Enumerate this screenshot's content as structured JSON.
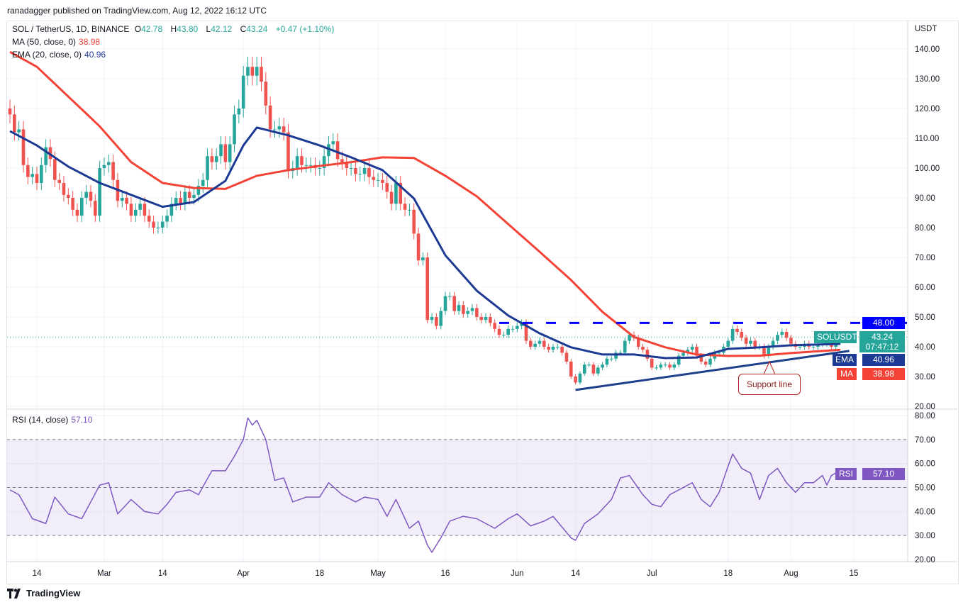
{
  "publisher": "ranadagger published on TradingView.com, Aug 12, 2022 16:12 UTC",
  "legend": {
    "symbol": "SOL / TetherUS, 1D, BINANCE",
    "o_label": "O",
    "o": "42.78",
    "h_label": "H",
    "h": "43.80",
    "l_label": "L",
    "l": "42.12",
    "c_label": "C",
    "c": "43.24",
    "change": "+0.47 (+1.10%)",
    "ma_label": "MA (50, close, 0)",
    "ma_value": "38.98",
    "ema_label": "EMA (20, close, 0)",
    "ema_value": "40.96",
    "rsi_label": "RSI (14, close)",
    "rsi_value": "57.10"
  },
  "price_axis": {
    "unit": "USDT",
    "ticks": [
      "140.00",
      "130.00",
      "120.00",
      "110.00",
      "100.00",
      "90.00",
      "80.00",
      "70.00",
      "60.00",
      "50.00",
      "40.00",
      "30.00",
      "20.00"
    ]
  },
  "rsi_axis": {
    "ticks": [
      "80.00",
      "70.00",
      "60.00",
      "50.00",
      "40.00",
      "30.00",
      "20.00"
    ]
  },
  "time_axis": {
    "ticks": [
      {
        "label": "14",
        "date": "2022-02-14"
      },
      {
        "label": "Mar",
        "date": "2022-03-01"
      },
      {
        "label": "14",
        "date": "2022-03-14"
      },
      {
        "label": "Apr",
        "date": "2022-04-01"
      },
      {
        "label": "18",
        "date": "2022-04-18"
      },
      {
        "label": "May",
        "date": "2022-05-01"
      },
      {
        "label": "16",
        "date": "2022-05-16"
      },
      {
        "label": "Jun",
        "date": "2022-06-01"
      },
      {
        "label": "14",
        "date": "2022-06-14"
      },
      {
        "label": "Jul",
        "date": "2022-07-01"
      },
      {
        "label": "18",
        "date": "2022-07-18"
      },
      {
        "label": "Aug",
        "date": "2022-08-01"
      },
      {
        "label": "15",
        "date": "2022-08-15"
      }
    ]
  },
  "tags": {
    "resistance": "48.00",
    "symbol": "SOLUSDT",
    "last": "43.24",
    "countdown": "07:47:12",
    "ema": "EMA",
    "ema_value": "40.96",
    "ma": "MA",
    "ma_value": "38.98",
    "rsi": "RSI",
    "rsi_value": "57.10"
  },
  "annotation": {
    "support_label": "Support line"
  },
  "colors": {
    "up": "#26a69a",
    "down": "#ef5350",
    "ma": "#f44336",
    "ema": "#1c3a94",
    "support": "#1e3f8a",
    "resistance": "#0000ff",
    "rsi": "#7e57c2",
    "annotation": "#b22222"
  },
  "footer": {
    "brand": "TradingView"
  },
  "chart_data": {
    "type": "candlestick",
    "ylim": [
      20,
      140
    ],
    "rsi_ylim": [
      20,
      80
    ],
    "grid": true,
    "closes_by_week": [
      {
        "week_of": "2022-02-08",
        "c": [
          118,
          112,
          113,
          101,
          97,
          98
        ]
      },
      {
        "week_of": "2022-02-14",
        "c": [
          95,
          101,
          107,
          103,
          96,
          95,
          91
        ]
      },
      {
        "week_of": "2022-02-21",
        "c": [
          90,
          86,
          84,
          90,
          92,
          89,
          84
        ]
      },
      {
        "week_of": "2022-02-28",
        "c": [
          100,
          101,
          102,
          96,
          89,
          90,
          88
        ]
      },
      {
        "week_of": "2022-03-07",
        "c": [
          84,
          86,
          88,
          84,
          82,
          80,
          80
        ]
      },
      {
        "week_of": "2022-03-14",
        "c": [
          82,
          84,
          88,
          90,
          88,
          92,
          90
        ]
      },
      {
        "week_of": "2022-03-21",
        "c": [
          91,
          94,
          96,
          104,
          102,
          104,
          108
        ]
      },
      {
        "week_of": "2022-03-28",
        "c": [
          102,
          108,
          118,
          120,
          131,
          134,
          131
        ]
      },
      {
        "week_of": "2022-04-04",
        "c": [
          134,
          129,
          121,
          113,
          113,
          114,
          112
        ]
      },
      {
        "week_of": "2022-04-11",
        "c": [
          99,
          100,
          104,
          101,
          101,
          101,
          100
        ]
      },
      {
        "week_of": "2022-04-18",
        "c": [
          100,
          104,
          108,
          109,
          103,
          102,
          100
        ]
      },
      {
        "week_of": "2022-04-25",
        "c": [
          100,
          98,
          98,
          100,
          97,
          96,
          96
        ]
      },
      {
        "week_of": "2022-05-02",
        "c": [
          95,
          92,
          88,
          95,
          88,
          86,
          86
        ]
      },
      {
        "week_of": "2022-05-09",
        "c": [
          78,
          69,
          70,
          49,
          50,
          47,
          52
        ]
      },
      {
        "week_of": "2022-05-16",
        "c": [
          57,
          57,
          52,
          54,
          51,
          52,
          53
        ]
      },
      {
        "week_of": "2022-05-23",
        "c": [
          50,
          49,
          50,
          48,
          46,
          44,
          44
        ]
      },
      {
        "week_of": "2022-05-30",
        "c": [
          46,
          46,
          47,
          48,
          42,
          40,
          41
        ]
      },
      {
        "week_of": "2022-06-06",
        "c": [
          42,
          40,
          39,
          40,
          40,
          38,
          35
        ]
      },
      {
        "week_of": "2022-06-13",
        "c": [
          30,
          28,
          31,
          34,
          34,
          31,
          33
        ]
      },
      {
        "week_of": "2022-06-20",
        "c": [
          34,
          36,
          36,
          38,
          38,
          42,
          44
        ]
      },
      {
        "week_of": "2022-06-27",
        "c": [
          43,
          40,
          39,
          36,
          33,
          33,
          34
        ]
      },
      {
        "week_of": "2022-07-04",
        "c": [
          34,
          33,
          34,
          37,
          38,
          39,
          40
        ]
      },
      {
        "week_of": "2022-07-11",
        "c": [
          37,
          35,
          34,
          36,
          38,
          38,
          40
        ]
      },
      {
        "week_of": "2022-07-18",
        "c": [
          42,
          46,
          45,
          43,
          41,
          42,
          40
        ]
      },
      {
        "week_of": "2022-07-25",
        "c": [
          40,
          37,
          40,
          42,
          44,
          45,
          43
        ]
      },
      {
        "week_of": "2022-08-01",
        "c": [
          41,
          40,
          40,
          41,
          40,
          40,
          41
        ]
      },
      {
        "week_of": "2022-08-08",
        "c": [
          41,
          42,
          40,
          42,
          43.24
        ]
      }
    ],
    "ma50": [
      [
        "2022-02-08",
        139
      ],
      [
        "2022-02-14",
        134
      ],
      [
        "2022-02-28",
        114
      ],
      [
        "2022-03-07",
        102
      ],
      [
        "2022-03-14",
        95
      ],
      [
        "2022-03-21",
        93.3
      ],
      [
        "2022-03-28",
        93
      ],
      [
        "2022-04-04",
        97.4
      ],
      [
        "2022-04-11",
        99.3
      ],
      [
        "2022-04-18",
        100.7
      ],
      [
        "2022-04-25",
        102
      ],
      [
        "2022-05-02",
        103.6
      ],
      [
        "2022-05-09",
        103.4
      ],
      [
        "2022-05-16",
        97.4
      ],
      [
        "2022-05-23",
        90.5
      ],
      [
        "2022-05-30",
        81.2
      ],
      [
        "2022-06-06",
        71.9
      ],
      [
        "2022-06-13",
        62.4
      ],
      [
        "2022-06-20",
        51.7
      ],
      [
        "2022-06-27",
        43.3
      ],
      [
        "2022-07-04",
        39.8
      ],
      [
        "2022-07-11",
        37.4
      ],
      [
        "2022-07-18",
        36.9
      ],
      [
        "2022-07-25",
        37
      ],
      [
        "2022-08-01",
        37.9
      ],
      [
        "2022-08-12",
        38.98
      ]
    ],
    "ema20": [
      [
        "2022-02-08",
        112.4
      ],
      [
        "2022-02-14",
        107.6
      ],
      [
        "2022-02-21",
        100.5
      ],
      [
        "2022-02-28",
        95
      ],
      [
        "2022-03-07",
        91
      ],
      [
        "2022-03-14",
        87
      ],
      [
        "2022-03-21",
        88.6
      ],
      [
        "2022-03-28",
        95.7
      ],
      [
        "2022-04-01",
        107.6
      ],
      [
        "2022-04-04",
        113.6
      ],
      [
        "2022-04-11",
        111
      ],
      [
        "2022-04-18",
        107.6
      ],
      [
        "2022-04-25",
        103.6
      ],
      [
        "2022-05-02",
        99.3
      ],
      [
        "2022-05-09",
        89.8
      ],
      [
        "2022-05-16",
        70.7
      ],
      [
        "2022-05-23",
        58.8
      ],
      [
        "2022-05-30",
        50.5
      ],
      [
        "2022-06-06",
        44.5
      ],
      [
        "2022-06-13",
        39.8
      ],
      [
        "2022-06-20",
        37.4
      ],
      [
        "2022-06-27",
        37.4
      ],
      [
        "2022-07-04",
        36.2
      ],
      [
        "2022-07-11",
        36.4
      ],
      [
        "2022-07-18",
        39.3
      ],
      [
        "2022-07-25",
        39.8
      ],
      [
        "2022-08-01",
        40.5
      ],
      [
        "2022-08-12",
        40.96
      ]
    ],
    "support_line": [
      [
        "2022-06-14",
        25.5
      ],
      [
        "2022-08-14",
        38.6
      ]
    ],
    "resistance_level": {
      "value": 48,
      "from": "2022-05-28"
    },
    "rsi": [
      [
        "2022-02-08",
        49
      ],
      [
        "2022-02-10",
        47
      ],
      [
        "2022-02-13",
        37
      ],
      [
        "2022-02-16",
        35
      ],
      [
        "2022-02-18",
        46
      ],
      [
        "2022-02-21",
        39
      ],
      [
        "2022-02-24",
        37
      ],
      [
        "2022-02-26",
        44
      ],
      [
        "2022-02-28",
        51
      ],
      [
        "2022-03-02",
        52
      ],
      [
        "2022-03-04",
        39
      ],
      [
        "2022-03-07",
        45
      ],
      [
        "2022-03-10",
        40
      ],
      [
        "2022-03-13",
        39
      ],
      [
        "2022-03-15",
        43
      ],
      [
        "2022-03-17",
        48
      ],
      [
        "2022-03-20",
        49
      ],
      [
        "2022-03-22",
        47
      ],
      [
        "2022-03-25",
        57
      ],
      [
        "2022-03-28",
        57
      ],
      [
        "2022-03-30",
        63
      ],
      [
        "2022-04-01",
        70
      ],
      [
        "2022-04-02",
        79
      ],
      [
        "2022-04-03",
        76
      ],
      [
        "2022-04-04",
        78
      ],
      [
        "2022-04-06",
        70
      ],
      [
        "2022-04-08",
        53
      ],
      [
        "2022-04-10",
        54
      ],
      [
        "2022-04-12",
        44
      ],
      [
        "2022-04-15",
        46
      ],
      [
        "2022-04-18",
        46
      ],
      [
        "2022-04-20",
        52
      ],
      [
        "2022-04-23",
        47
      ],
      [
        "2022-04-26",
        44
      ],
      [
        "2022-04-28",
        46
      ],
      [
        "2022-05-01",
        45
      ],
      [
        "2022-05-03",
        38
      ],
      [
        "2022-05-05",
        45
      ],
      [
        "2022-05-08",
        33
      ],
      [
        "2022-05-10",
        36
      ],
      [
        "2022-05-12",
        26
      ],
      [
        "2022-05-13",
        23
      ],
      [
        "2022-05-15",
        29
      ],
      [
        "2022-05-17",
        36
      ],
      [
        "2022-05-20",
        38
      ],
      [
        "2022-05-23",
        37
      ],
      [
        "2022-05-27",
        33
      ],
      [
        "2022-05-30",
        37
      ],
      [
        "2022-06-01",
        39
      ],
      [
        "2022-06-04",
        34
      ],
      [
        "2022-06-07",
        36
      ],
      [
        "2022-06-09",
        38
      ],
      [
        "2022-06-13",
        29
      ],
      [
        "2022-06-14",
        28
      ],
      [
        "2022-06-16",
        35
      ],
      [
        "2022-06-19",
        39
      ],
      [
        "2022-06-22",
        45
      ],
      [
        "2022-06-24",
        54
      ],
      [
        "2022-06-26",
        55
      ],
      [
        "2022-06-29",
        47
      ],
      [
        "2022-07-01",
        43
      ],
      [
        "2022-07-03",
        42
      ],
      [
        "2022-07-05",
        47
      ],
      [
        "2022-07-08",
        50
      ],
      [
        "2022-07-10",
        52
      ],
      [
        "2022-07-12",
        45
      ],
      [
        "2022-07-14",
        42
      ],
      [
        "2022-07-16",
        48
      ],
      [
        "2022-07-18",
        59
      ],
      [
        "2022-07-19",
        64
      ],
      [
        "2022-07-21",
        58
      ],
      [
        "2022-07-23",
        56
      ],
      [
        "2022-07-25",
        45
      ],
      [
        "2022-07-27",
        55
      ],
      [
        "2022-07-29",
        58
      ],
      [
        "2022-07-31",
        52
      ],
      [
        "2022-08-02",
        48
      ],
      [
        "2022-08-04",
        52
      ],
      [
        "2022-08-06",
        52
      ],
      [
        "2022-08-08",
        55
      ],
      [
        "2022-08-09",
        51
      ],
      [
        "2022-08-10",
        55
      ],
      [
        "2022-08-12",
        57.1
      ]
    ]
  }
}
